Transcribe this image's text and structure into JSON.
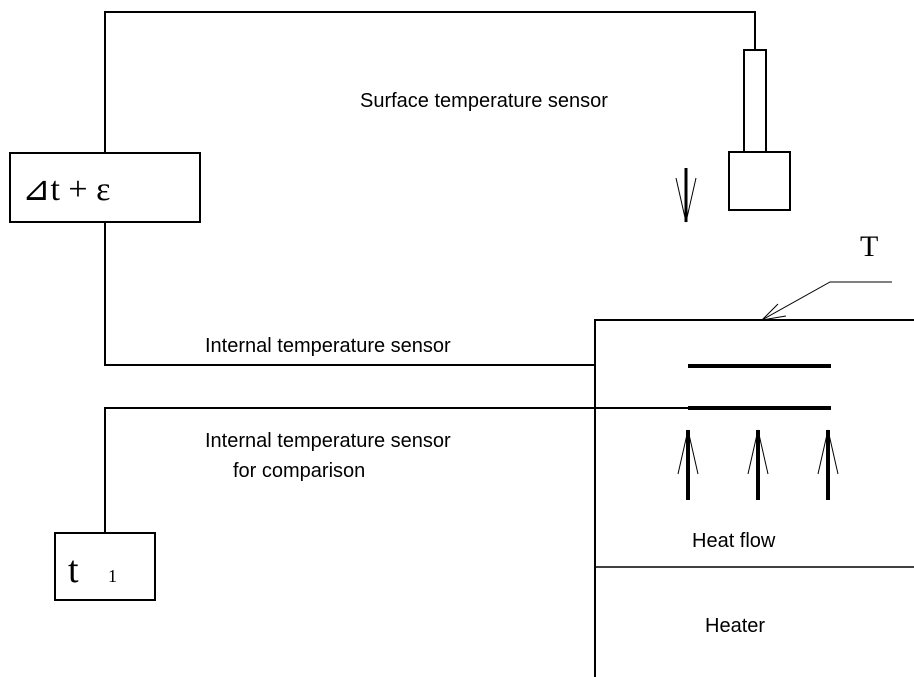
{
  "labels": {
    "surface_sensor": "Surface temperature sensor",
    "difference_meter": "⊿t + ε",
    "surface": "T",
    "internal_sensor": "Internal temperature sensor",
    "comparison_sensor": [
      "Internal temperature sensor",
      "for comparison"
    ],
    "reference_meter": {
      "main": "t",
      "sub": "1"
    },
    "heat_flow": "Heat flow",
    "heater": "Heater"
  }
}
